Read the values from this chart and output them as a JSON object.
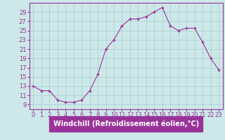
{
  "x": [
    0,
    1,
    2,
    3,
    4,
    5,
    6,
    7,
    8,
    9,
    10,
    11,
    12,
    13,
    14,
    15,
    16,
    17,
    18,
    19,
    20,
    21,
    22,
    23
  ],
  "y": [
    13,
    12,
    12,
    10,
    9.5,
    9.5,
    10,
    12,
    15.5,
    21,
    23,
    26,
    27.5,
    27.5,
    28,
    29,
    30,
    26,
    25,
    25.5,
    25.5,
    22.5,
    19,
    16.5
  ],
  "line_color": "#993399",
  "marker_color": "#993399",
  "bg_color": "#cce8e8",
  "grid_color": "#aacccc",
  "xlabel": "Windchill (Refroidissement éolien,°C)",
  "ylabel": "",
  "ylim": [
    8,
    31
  ],
  "xlim": [
    -0.5,
    23.5
  ],
  "yticks": [
    9,
    11,
    13,
    15,
    17,
    19,
    21,
    23,
    25,
    27,
    29
  ],
  "xticks": [
    0,
    1,
    2,
    3,
    4,
    5,
    6,
    7,
    8,
    9,
    10,
    11,
    12,
    13,
    14,
    15,
    16,
    17,
    18,
    19,
    20,
    21,
    22,
    23
  ],
  "xlabel_color": "#993399",
  "xlabel_bg": "#993399",
  "tick_color": "#993399",
  "tick_fontsize": 6,
  "label_fontsize": 7,
  "spine_color": "#993399"
}
